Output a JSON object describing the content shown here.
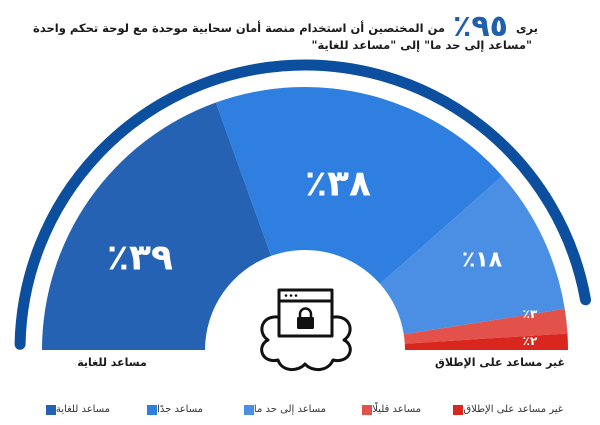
{
  "title": {
    "prefix": "يرى",
    "highlight": "٩٥٪",
    "line1_rest": "من المختصين أن استخدام منصة أمان سحابية موحدة مع لوحة تحكم واحدة",
    "line2": "\"مساعد إلى حد ما\" إلى \"مساعد للغاية\""
  },
  "axis_labels": {
    "left": "مساعد للغاية",
    "right": "غير مساعد على الإطلاق"
  },
  "segments": [
    {
      "label": "مساعد للغاية",
      "value_text": "٣٩٪",
      "color": "#2562b3"
    },
    {
      "label": "مساعد جدًا",
      "value_text": "٣٨٪",
      "color": "#2f7fe0"
    },
    {
      "label": "مساعد إلى حد ما",
      "value_text": "١٨٪",
      "color": "#4a8fe4"
    },
    {
      "label": "مساعد قليلًا",
      "value_text": "٣٪",
      "color": "#e2514a"
    },
    {
      "label": "غير مساعد على الإطلاق",
      "value_text": "٢٪",
      "color": "#d9271f"
    }
  ],
  "legend": [
    {
      "label": "مساعد للغاية",
      "color": "#2562b3"
    },
    {
      "label": "مساعد جدًا",
      "color": "#2f7fe0"
    },
    {
      "label": "مساعد إلى حد ما",
      "color": "#4a8fe4"
    },
    {
      "label": "مساعد قليلًا",
      "color": "#e2514a"
    },
    {
      "label": "غير مساعد على الإطلاق",
      "color": "#d9271f"
    }
  ],
  "outer_ring": {
    "color": "#0c4f9e",
    "value_percent": 95
  },
  "center_icon": "cloud-lock-browser-icon",
  "chart_data": {
    "type": "pie",
    "subtype": "semicircle-gauge",
    "title": "يرى ٩٥٪ من المختصين أن استخدام منصة أمان سحابية موحدة مع لوحة تحكم واحدة \"مساعد إلى حد ما\" إلى \"مساعد للغاية\"",
    "categories": [
      "مساعد للغاية",
      "مساعد جدًا",
      "مساعد إلى حد ما",
      "مساعد قليلًا",
      "غير مساعد على الإطلاق"
    ],
    "values": [
      39,
      38,
      18,
      3,
      2
    ],
    "colors": [
      "#2562b3",
      "#2f7fe0",
      "#4a8fe4",
      "#e2514a",
      "#d9271f"
    ],
    "highlight_value": 95,
    "legend_position": "bottom",
    "axis_end_labels": {
      "left": "مساعد للغاية",
      "right": "غير مساعد على الإطلاق"
    }
  }
}
